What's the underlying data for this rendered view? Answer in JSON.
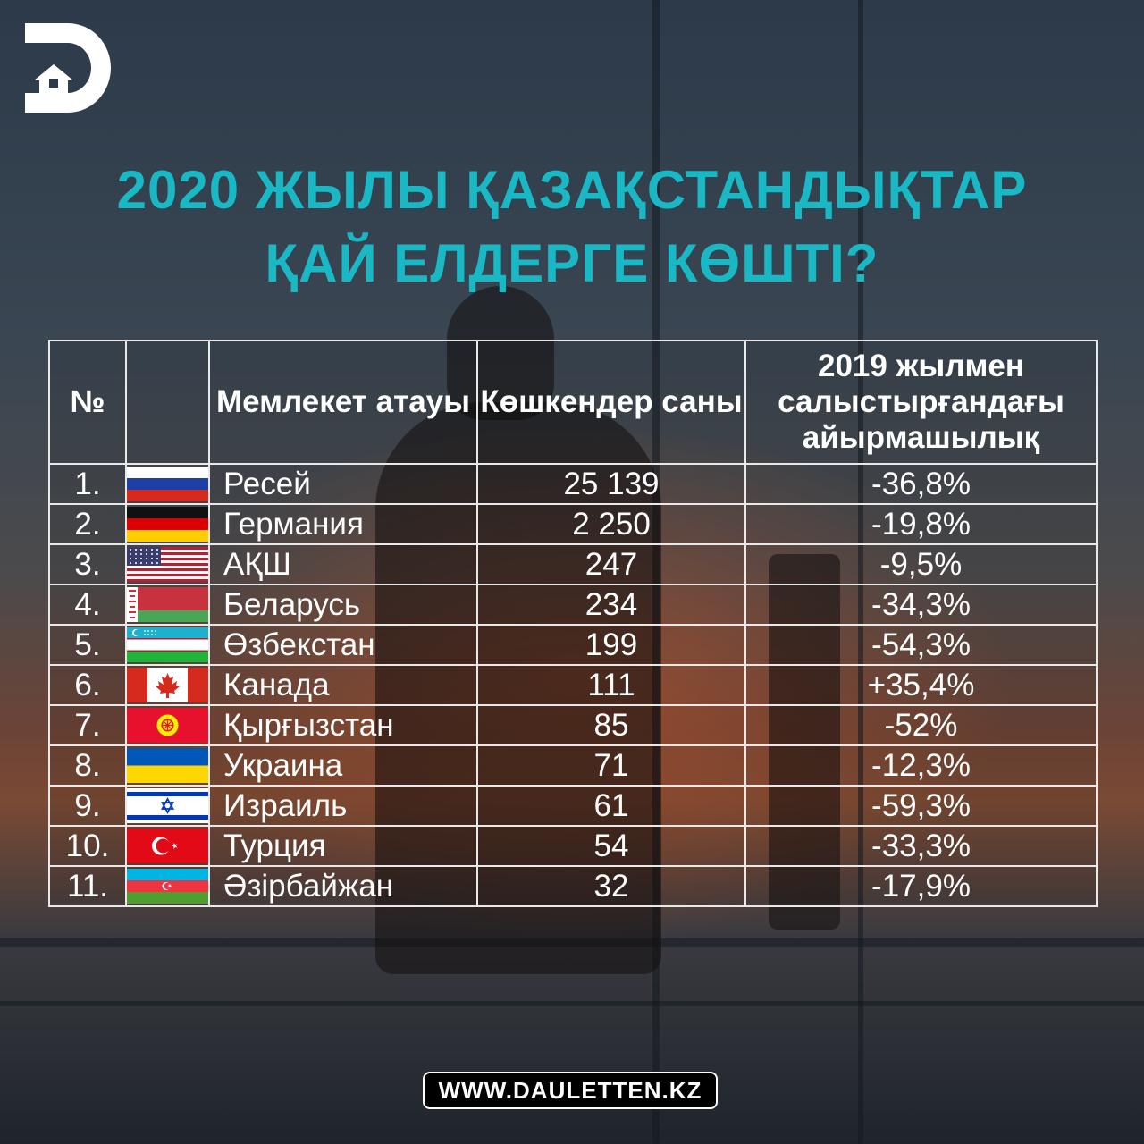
{
  "title": {
    "line1": "2020 ЖЫЛЫ ҚАЗАҚСТАНДЫҚТАР",
    "line2": "ҚАЙ ЕЛДЕРГЕ КӨШТІ?"
  },
  "table": {
    "headers": {
      "num": "№",
      "name": "Мемлекет атауы",
      "count": "Көшкендер саны",
      "diff": "2019 жылмен салыстырғандағы айырмашылық"
    },
    "rows": [
      {
        "num": "1.",
        "flag": "russia-flag-icon",
        "name": "Ресей",
        "count": "25 139",
        "diff": "-36,8%"
      },
      {
        "num": "2.",
        "flag": "germany-flag-icon",
        "name": "Германия",
        "count": "2 250",
        "diff": "-19,8%"
      },
      {
        "num": "3.",
        "flag": "usa-flag-icon",
        "name": "АҚШ",
        "count": "247",
        "diff": "-9,5%"
      },
      {
        "num": "4.",
        "flag": "belarus-flag-icon",
        "name": "Беларусь",
        "count": "234",
        "diff": "-34,3%"
      },
      {
        "num": "5.",
        "flag": "uzbekistan-flag-icon",
        "name": "Өзбекстан",
        "count": "199",
        "diff": "-54,3%"
      },
      {
        "num": "6.",
        "flag": "canada-flag-icon",
        "name": "Канада",
        "count": "111",
        "diff": "+35,4%"
      },
      {
        "num": "7.",
        "flag": "kyrgyzstan-flag-icon",
        "name": "Қырғызстан",
        "count": "85",
        "diff": "-52%"
      },
      {
        "num": "8.",
        "flag": "ukraine-flag-icon",
        "name": "Украина",
        "count": "71",
        "diff": "-12,3%"
      },
      {
        "num": "9.",
        "flag": "israel-flag-icon",
        "name": "Израиль",
        "count": "61",
        "diff": "-59,3%"
      },
      {
        "num": "10.",
        "flag": "turkey-flag-icon",
        "name": "Турция",
        "count": "54",
        "diff": "-33,3%"
      },
      {
        "num": "11.",
        "flag": "azerbaijan-flag-icon",
        "name": "Әзірбайжан",
        "count": "32",
        "diff": "-17,9%"
      }
    ]
  },
  "footer": {
    "site": "WWW.DAULETTEN.KZ"
  },
  "colors": {
    "title": "#19b8c4",
    "text": "#ffffff",
    "grid": "#e9e9e9"
  },
  "icons": {
    "logo": "dauletten-logo-icon"
  }
}
